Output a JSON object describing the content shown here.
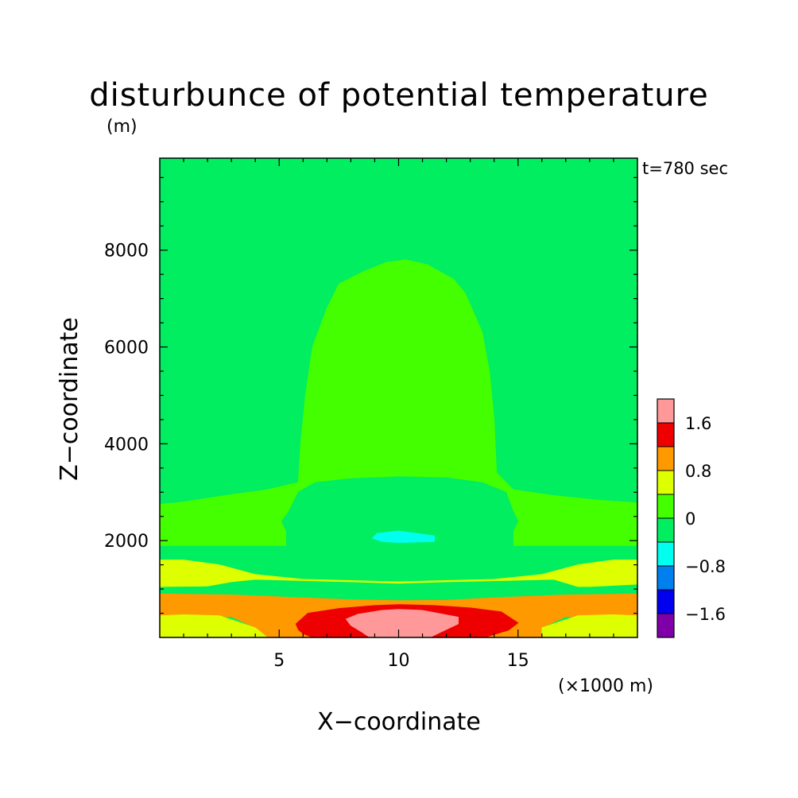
{
  "chart_data": {
    "type": "heatmap",
    "title": "disturbunce of potential temperature",
    "z_unit_label": "(m)",
    "x_unit_label": "(×1000 m)",
    "xlabel": "X−coordinate",
    "ylabel": "Z−coordinate",
    "time_label": "t=780 sec",
    "xlim": [
      0,
      20
    ],
    "ylim": [
      0,
      9900
    ],
    "x_ticks": [
      {
        "value": 5,
        "label": "5"
      },
      {
        "value": 10,
        "label": "10"
      },
      {
        "value": 15,
        "label": "15"
      }
    ],
    "y_ticks": [
      {
        "value": 2000,
        "label": "2000"
      },
      {
        "value": 4000,
        "label": "4000"
      },
      {
        "value": 6000,
        "label": "6000"
      },
      {
        "value": 8000,
        "label": "8000"
      }
    ],
    "colorbar": {
      "levels": [
        -2.0,
        -1.6,
        -1.2,
        -0.8,
        -0.4,
        0,
        0.4,
        0.8,
        1.2,
        1.6,
        2.0
      ],
      "colors": [
        "#7f00a8",
        "#0000ee",
        "#0080ee",
        "#00ffee",
        "#00ee60",
        "#44ff00",
        "#ddff00",
        "#ff9900",
        "#ee0000",
        "#ff9999"
      ],
      "tick_labels": [
        {
          "value": -1.6,
          "label": "−1.6"
        },
        {
          "value": -0.8,
          "label": "−0.8"
        },
        {
          "value": 0,
          "label": "0"
        },
        {
          "value": 0.8,
          "label": "0.8"
        },
        {
          "value": 1.6,
          "label": "1.6"
        }
      ]
    },
    "regions": [
      {
        "name": "near-zero background",
        "level_range": [
          -0.4,
          0
        ],
        "color": "#00ee60",
        "points": [
          [
            0,
            0
          ],
          [
            20,
            0
          ],
          [
            20,
            9900
          ],
          [
            0,
            9900
          ]
        ]
      },
      {
        "name": "warm plume",
        "level_range": [
          0,
          0.4
        ],
        "color": "#44ff00",
        "points": [
          [
            0,
            2750
          ],
          [
            1,
            2800
          ],
          [
            3,
            2950
          ],
          [
            4.5,
            3050
          ],
          [
            5.8,
            3200
          ],
          [
            5.9,
            4000
          ],
          [
            6.1,
            5000
          ],
          [
            6.4,
            6000
          ],
          [
            7.0,
            6800
          ],
          [
            7.5,
            7300
          ],
          [
            8.5,
            7550
          ],
          [
            9.5,
            7750
          ],
          [
            10.3,
            7800
          ],
          [
            11.2,
            7700
          ],
          [
            12.3,
            7400
          ],
          [
            12.8,
            7100
          ],
          [
            13.5,
            6300
          ],
          [
            13.8,
            5500
          ],
          [
            14.0,
            4500
          ],
          [
            14.1,
            3400
          ],
          [
            14.8,
            3050
          ],
          [
            16.5,
            2930
          ],
          [
            18.5,
            2830
          ],
          [
            20,
            2780
          ],
          [
            20,
            1900
          ],
          [
            0,
            1900
          ]
        ]
      },
      {
        "name": "cool core",
        "level_range": [
          -0.4,
          0
        ],
        "color": "#00ee60",
        "points": [
          [
            5.8,
            3000
          ],
          [
            6.5,
            3200
          ],
          [
            8,
            3280
          ],
          [
            10,
            3320
          ],
          [
            12,
            3300
          ],
          [
            13.5,
            3200
          ],
          [
            14.5,
            3000
          ],
          [
            14.8,
            2600
          ],
          [
            15.0,
            2400
          ],
          [
            14.8,
            2200
          ],
          [
            14.8,
            1800
          ],
          [
            14.0,
            1500
          ],
          [
            12.5,
            1400
          ],
          [
            10,
            1380
          ],
          [
            7.5,
            1400
          ],
          [
            6,
            1500
          ],
          [
            5.3,
            1800
          ],
          [
            5.3,
            2200
          ],
          [
            5.1,
            2400
          ],
          [
            5.4,
            2600
          ]
        ]
      },
      {
        "name": "cold pocket",
        "level_range": [
          -0.8,
          -0.4
        ],
        "color": "#00ffee",
        "points": [
          [
            8.9,
            2050
          ],
          [
            9.3,
            1980
          ],
          [
            10,
            1960
          ],
          [
            11.5,
            1980
          ],
          [
            11.5,
            2100
          ],
          [
            10,
            2200
          ],
          [
            9.1,
            2150
          ]
        ]
      },
      {
        "name": "low-level warm band",
        "level_range": [
          0.4,
          0.8
        ],
        "color": "#ddff00",
        "points": [
          [
            0,
            1600
          ],
          [
            1,
            1600
          ],
          [
            2.5,
            1500
          ],
          [
            4,
            1300
          ],
          [
            6,
            1200
          ],
          [
            10,
            1150
          ],
          [
            14,
            1200
          ],
          [
            16,
            1300
          ],
          [
            17.5,
            1500
          ],
          [
            19,
            1600
          ],
          [
            20,
            1600
          ],
          [
            20,
            1100
          ],
          [
            18,
            1050
          ],
          [
            17.5,
            1050
          ],
          [
            16.5,
            1200
          ],
          [
            12,
            1150
          ],
          [
            10,
            1120
          ],
          [
            8,
            1150
          ],
          [
            4,
            1200
          ],
          [
            3,
            1150
          ],
          [
            2,
            1060
          ],
          [
            0,
            1050
          ]
        ]
      },
      {
        "name": "low-level warm band left",
        "level_range": [
          0.4,
          0.8
        ],
        "color": "#ddff00",
        "points": [
          [
            0,
            1500
          ],
          [
            4,
            1250
          ],
          [
            0,
            1150
          ]
        ]
      },
      {
        "name": "upper orange layer",
        "level_range": [
          0.8,
          1.2
        ],
        "color": "#ff9900",
        "points": [
          [
            0,
            900
          ],
          [
            3,
            880
          ],
          [
            6,
            820
          ],
          [
            8,
            780
          ],
          [
            10,
            760
          ],
          [
            12,
            770
          ],
          [
            14,
            820
          ],
          [
            17,
            880
          ],
          [
            20,
            900
          ],
          [
            20,
            450
          ],
          [
            17,
            430
          ],
          [
            16,
            200
          ],
          [
            16,
            0
          ],
          [
            4.5,
            0
          ],
          [
            4,
            200
          ],
          [
            3,
            430
          ],
          [
            0,
            450
          ]
        ]
      },
      {
        "name": "lower yellow layer",
        "level_range": [
          0.4,
          0.8
        ],
        "color": "#ddff00",
        "points": [
          [
            0,
            450
          ],
          [
            1,
            470
          ],
          [
            2.5,
            450
          ],
          [
            4,
            200
          ],
          [
            4.5,
            0
          ],
          [
            0,
            0
          ]
        ]
      },
      {
        "name": "lower yellow layer right",
        "level_range": [
          0.4,
          0.8
        ],
        "color": "#ddff00",
        "points": [
          [
            20,
            450
          ],
          [
            19,
            470
          ],
          [
            17.5,
            450
          ],
          [
            16,
            200
          ],
          [
            16,
            0
          ],
          [
            20,
            0
          ]
        ]
      },
      {
        "name": "red core",
        "level_range": [
          1.2,
          1.6
        ],
        "color": "#ee0000",
        "points": [
          [
            5.7,
            280
          ],
          [
            6.2,
            500
          ],
          [
            7.5,
            600
          ],
          [
            9,
            660
          ],
          [
            10,
            680
          ],
          [
            11.5,
            660
          ],
          [
            13,
            610
          ],
          [
            14.3,
            530
          ],
          [
            15,
            300
          ],
          [
            14.6,
            150
          ],
          [
            14,
            60
          ],
          [
            13.6,
            0
          ],
          [
            6.4,
            0
          ],
          [
            6,
            80
          ],
          [
            5.8,
            160
          ]
        ]
      },
      {
        "name": "hot center",
        "level_range": [
          1.6,
          2.0
        ],
        "color": "#ff9999",
        "points": [
          [
            7.8,
            380
          ],
          [
            8.3,
            480
          ],
          [
            9.3,
            560
          ],
          [
            10,
            580
          ],
          [
            11,
            560
          ],
          [
            12.5,
            420
          ],
          [
            12.5,
            280
          ],
          [
            11.8,
            120
          ],
          [
            11.3,
            0
          ],
          [
            8.8,
            0
          ],
          [
            8.5,
            100
          ],
          [
            8,
            250
          ]
        ]
      }
    ]
  }
}
